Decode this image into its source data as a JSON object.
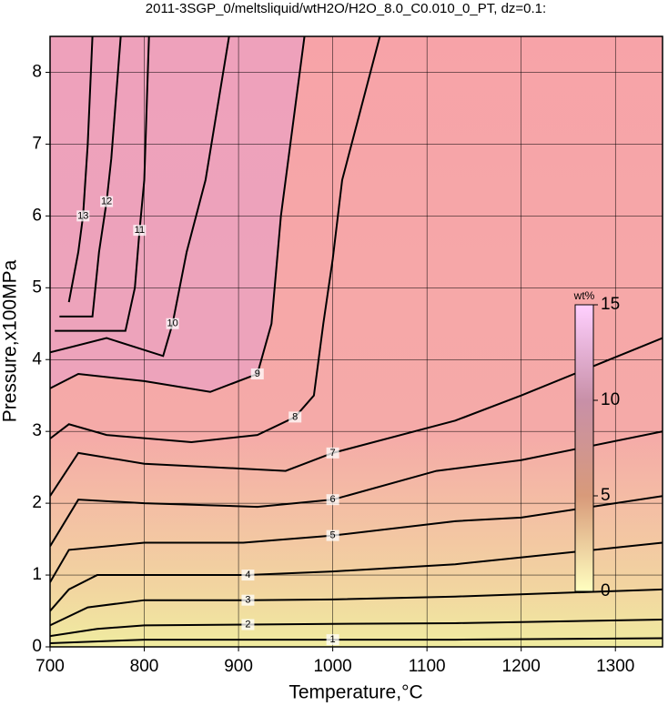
{
  "chart_data": {
    "type": "contour",
    "title": "2011-3SGP_0/meltsliquid/wtH2O/H2O_8.0_C0.010_0_PT, dz=0.1:",
    "x_label": "Temperature,°C",
    "y_label": "Pressure,x100MPa",
    "xlim": [
      700,
      1350
    ],
    "ylim": [
      0,
      8.5
    ],
    "xticks": [
      700,
      800,
      900,
      1000,
      1100,
      1200,
      1300
    ],
    "yticks": [
      0,
      1,
      2,
      3,
      4,
      5,
      6,
      7,
      8
    ],
    "grid": true,
    "colorbar": {
      "label": "wt%",
      "clim": [
        0,
        15
      ],
      "ticks": [
        0,
        5,
        10,
        15
      ],
      "colors": [
        "#ffffc0",
        "#d89a7a",
        "#c890a8",
        "#ffd0ff"
      ]
    },
    "contours": [
      {
        "level": 1,
        "x": [
          700,
          800,
          1000,
          1130,
          1350
        ],
        "y": [
          0.05,
          0.1,
          0.1,
          0.1,
          0.12
        ]
      },
      {
        "level": 2,
        "x": [
          700,
          750,
          800,
          910,
          1000,
          1130,
          1350
        ],
        "y": [
          0.15,
          0.25,
          0.3,
          0.31,
          0.32,
          0.33,
          0.38
        ]
      },
      {
        "level": 3,
        "x": [
          700,
          740,
          800,
          910,
          1000,
          1130,
          1350
        ],
        "y": [
          0.3,
          0.55,
          0.65,
          0.65,
          0.66,
          0.7,
          0.8
        ]
      },
      {
        "level": 4,
        "x": [
          700,
          720,
          750,
          910,
          1000,
          1130,
          1350
        ],
        "y": [
          0.5,
          0.8,
          1.0,
          1.0,
          1.05,
          1.15,
          1.45
        ]
      },
      {
        "level": 5,
        "x": [
          700,
          720,
          800,
          905,
          1000,
          1130,
          1200,
          1350
        ],
        "y": [
          0.9,
          1.35,
          1.45,
          1.45,
          1.55,
          1.75,
          1.8,
          2.1
        ]
      },
      {
        "level": 6,
        "x": [
          700,
          730,
          800,
          920,
          1000,
          1110,
          1200,
          1350
        ],
        "y": [
          1.4,
          2.05,
          2.0,
          1.95,
          2.05,
          2.45,
          2.6,
          3.0
        ]
      },
      {
        "level": 7,
        "x": [
          700,
          730,
          800,
          950,
          1000,
          1130,
          1200,
          1350
        ],
        "y": [
          2.1,
          2.7,
          2.55,
          2.45,
          2.7,
          3.15,
          3.5,
          4.3
        ]
      },
      {
        "level": 8,
        "x": [
          700,
          720,
          760,
          850,
          920,
          960,
          980,
          990,
          1000,
          1010,
          1050
        ],
        "y": [
          2.9,
          3.1,
          2.95,
          2.85,
          2.95,
          3.2,
          3.5,
          4.5,
          5.4,
          6.5,
          8.5
        ]
      },
      {
        "level": 9,
        "x": [
          700,
          730,
          800,
          870,
          920,
          935,
          945,
          960,
          970
        ],
        "y": [
          3.6,
          3.8,
          3.7,
          3.55,
          3.8,
          4.5,
          6.0,
          7.5,
          8.5
        ]
      },
      {
        "level": 10,
        "x": [
          700,
          760,
          820,
          830,
          845,
          865,
          890
        ],
        "y": [
          4.1,
          4.3,
          4.05,
          4.5,
          5.5,
          6.5,
          8.5
        ]
      },
      {
        "level": 11,
        "x": [
          705,
          780,
          790,
          795,
          800,
          805
        ],
        "y": [
          4.4,
          4.4,
          5.0,
          5.8,
          6.5,
          8.5
        ]
      },
      {
        "level": 12,
        "x": [
          710,
          745,
          752,
          760,
          765,
          775
        ],
        "y": [
          4.6,
          4.6,
          5.5,
          6.2,
          6.8,
          8.5
        ]
      },
      {
        "level": 13,
        "x": [
          720,
          730,
          735,
          740,
          745
        ],
        "y": [
          4.8,
          5.5,
          6.0,
          7.0,
          8.5
        ]
      }
    ]
  }
}
